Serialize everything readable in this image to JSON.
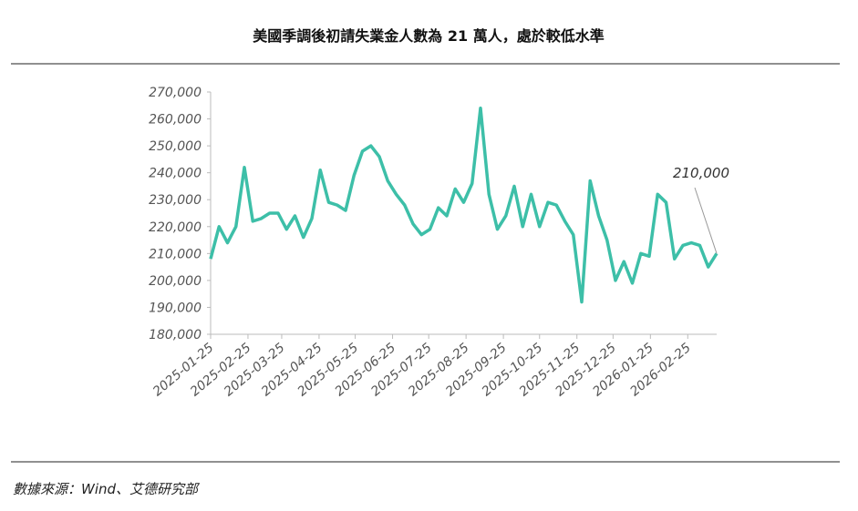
{
  "chart_data": {
    "type": "line",
    "title": "美國季調後初請失業金人數為 21 萬人，處於較低水準",
    "source": "數據來源：Wind、艾德研究部",
    "annotation": "210,000",
    "x": [
      "2025-01-25",
      "2025-02-01",
      "2025-02-08",
      "2025-02-15",
      "2025-02-22",
      "2025-03-01",
      "2025-03-08",
      "2025-03-15",
      "2025-03-22",
      "2025-03-29",
      "2025-04-05",
      "2025-04-12",
      "2025-04-19",
      "2025-04-26",
      "2025-05-03",
      "2025-05-10",
      "2025-05-17",
      "2025-05-24",
      "2025-05-31",
      "2025-06-07",
      "2025-06-14",
      "2025-06-21",
      "2025-06-28",
      "2025-07-05",
      "2025-07-12",
      "2025-07-19",
      "2025-07-26",
      "2025-08-02",
      "2025-08-09",
      "2025-08-16",
      "2025-08-23",
      "2025-08-30",
      "2025-09-06",
      "2025-09-13",
      "2025-09-20",
      "2025-09-27",
      "2025-10-04",
      "2025-10-11",
      "2025-10-18",
      "2025-10-25",
      "2025-11-01",
      "2025-11-08",
      "2025-11-15",
      "2025-11-22",
      "2025-11-29",
      "2025-12-06",
      "2025-12-13",
      "2025-12-20",
      "2025-12-27",
      "2026-01-03",
      "2026-01-10",
      "2026-01-17",
      "2026-01-24",
      "2026-01-31",
      "2026-02-07",
      "2026-02-14",
      "2026-02-21",
      "2026-02-28",
      "2026-03-07",
      "2026-03-14",
      "2026-03-21"
    ],
    "series": [
      {
        "name": "初請失業金人數",
        "color": "#3dbfa8",
        "values": [
          208000,
          220000,
          214000,
          220000,
          242000,
          222000,
          223000,
          225000,
          225000,
          219000,
          224000,
          216000,
          223000,
          241000,
          229000,
          228000,
          226000,
          239000,
          248000,
          250000,
          246000,
          237000,
          232000,
          228000,
          221000,
          217000,
          219000,
          227000,
          224000,
          234000,
          229000,
          236000,
          264000,
          232000,
          219000,
          224000,
          235000,
          220000,
          232000,
          220000,
          229000,
          228000,
          222000,
          217000,
          192000,
          237000,
          224000,
          215000,
          200000,
          207000,
          199000,
          210000,
          209000,
          232000,
          229000,
          208000,
          213000,
          214000,
          213000,
          205000,
          210000
        ]
      }
    ],
    "xlim": [
      "2025-01-25",
      "2026-03-21"
    ],
    "xticks": [
      "2025-01-25",
      "2025-02-25",
      "2025-03-25",
      "2025-04-25",
      "2025-05-25",
      "2025-06-25",
      "2025-07-25",
      "2025-08-25",
      "2025-09-25",
      "2025-10-25",
      "2025-11-25",
      "2025-12-25",
      "2026-01-25",
      "2026-02-25"
    ],
    "ylim": [
      180000,
      270000
    ],
    "yticks": [
      {
        "value": 180000,
        "label": "180,000"
      },
      {
        "value": 190000,
        "label": "190,000"
      },
      {
        "value": 200000,
        "label": "200,000"
      },
      {
        "value": 210000,
        "label": "210,000"
      },
      {
        "value": 220000,
        "label": "220,000"
      },
      {
        "value": 230000,
        "label": "230,000"
      },
      {
        "value": 240000,
        "label": "240,000"
      },
      {
        "value": 250000,
        "label": "250,000"
      },
      {
        "value": 260000,
        "label": "260,000"
      },
      {
        "value": 270000,
        "label": "270,000"
      }
    ]
  }
}
